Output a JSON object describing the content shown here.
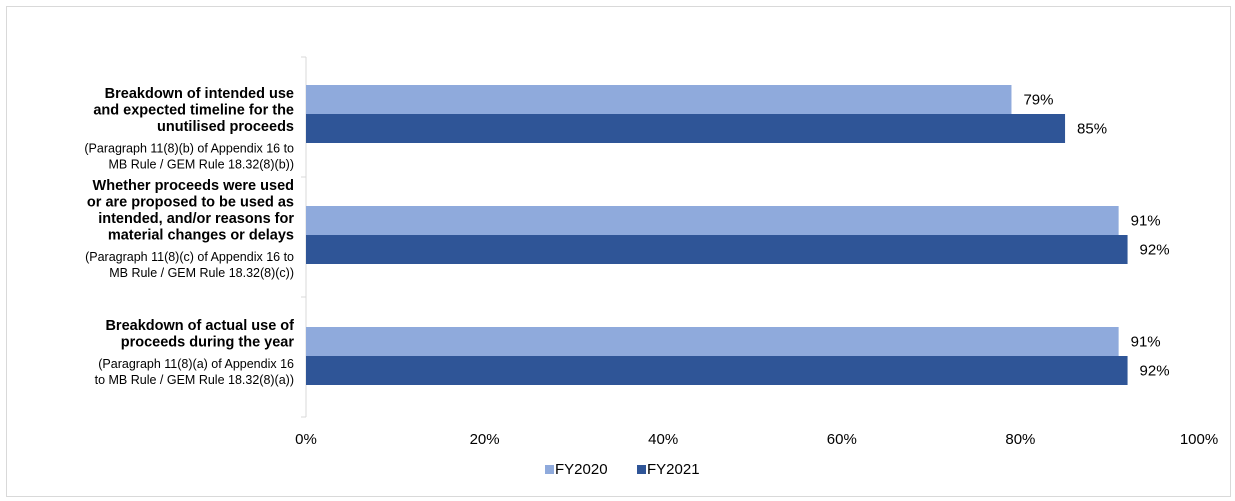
{
  "chart_data": {
    "type": "bar",
    "orientation": "horizontal",
    "categories": [
      {
        "title": "Breakdown of intended use and expected timeline for the unutilised proceeds",
        "title_lines": [
          "Breakdown of intended use",
          "and expected timeline for the",
          "unutilised proceeds"
        ],
        "sub_lines": [
          "(Paragraph 11(8)(b) of Appendix 16 to",
          "MB Rule / GEM Rule 18.32(8)(b))"
        ]
      },
      {
        "title": "Whether proceeds were used or are proposed to be used as intended, and/or reasons for material changes or delays",
        "title_lines": [
          "Whether proceeds were used",
          "or are proposed to be used as",
          "intended, and/or reasons for",
          "material changes or delays"
        ],
        "sub_lines": [
          "(Paragraph 11(8)(c) of Appendix 16 to",
          "MB Rule / GEM Rule 18.32(8)(c))"
        ]
      },
      {
        "title": "Breakdown of actual use of proceeds during the year",
        "title_lines": [
          "Breakdown of actual use of",
          "proceeds during the year"
        ],
        "sub_lines": [
          "(Paragraph 11(8)(a) of Appendix  16",
          "to MB Rule / GEM Rule 18.32(8)(a))"
        ]
      }
    ],
    "series": [
      {
        "name": "FY2020",
        "color": "#8faadc",
        "values": [
          79,
          91,
          91
        ],
        "labels": [
          "79%",
          "91%",
          "91%"
        ]
      },
      {
        "name": "FY2021",
        "color": "#2f5597",
        "values": [
          85,
          92,
          92
        ],
        "labels": [
          "85%",
          "92%",
          "92%"
        ]
      }
    ],
    "xlim": [
      0,
      100
    ],
    "xticks": [
      0,
      20,
      40,
      60,
      80,
      100
    ],
    "xtick_labels": [
      "0%",
      "20%",
      "40%",
      "60%",
      "80%",
      "100%"
    ],
    "grid": false,
    "legend_position": "bottom"
  }
}
